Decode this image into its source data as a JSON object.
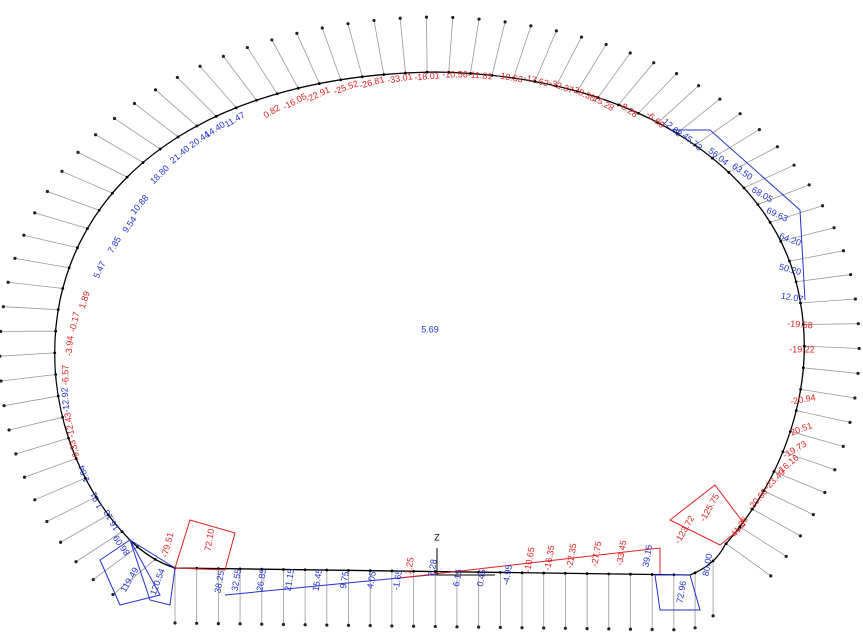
{
  "axis_label": "Z",
  "labels": [
    "11.47",
    "14.40",
    "20.44",
    "21.40",
    "18.80",
    "10.88",
    "9.54",
    "7.85",
    "5.47",
    "1.89",
    "-0.17",
    "-3.94",
    "-6.57",
    "-12.92",
    "-12.43",
    "-9.33",
    "-1.84",
    "1.91",
    "16.13",
    "86.09",
    "119.49",
    "120.54",
    "-79.51",
    "72.10",
    "38.25",
    "32.55",
    "26.85",
    "21.15",
    "15.45",
    "9.75",
    "4.05",
    "-1.65",
    "1.25",
    "7.28",
    "6.15",
    "0.45",
    "-4.95",
    "-10.65",
    "-16.35",
    "-22.35",
    "-27.75",
    "-33.45",
    "39.15",
    "72.96",
    "80.00",
    "-123.72",
    "-125.75",
    "41.86",
    "-20.60",
    "-23.49",
    "-16.16",
    "-19.73",
    "-20.51",
    "-20.94",
    "-19.22",
    "-19.58",
    "12.07",
    "50.20",
    "64.20",
    "69.63",
    "68.05",
    "63.50",
    "56.04",
    "45.73",
    "12.68",
    "-6.60",
    "-8.28",
    "-15.28",
    "-28.30",
    "-32.37",
    "-17.62",
    "-10.63",
    "-11.81",
    "-10.56",
    "-18.01",
    "-33.01",
    "-26.81",
    "-25.52",
    "-22.91",
    "-16.05",
    "0.82",
    "5.69"
  ]
}
